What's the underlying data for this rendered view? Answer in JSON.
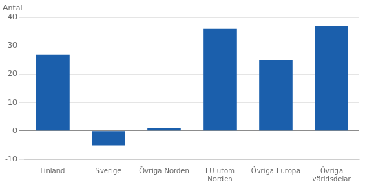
{
  "chart_data": {
    "type": "bar",
    "ylabel": "Antal",
    "categories": [
      "Finland",
      "Sverige",
      "Övriga Norden",
      "EU utom\nNorden",
      "Övriga Europa",
      "Övriga\nvärldsdelar"
    ],
    "values": [
      27,
      -5,
      1,
      36,
      25,
      37
    ],
    "color": "#1b5fac",
    "ylim": [
      -10,
      40
    ],
    "yticks": [
      -10,
      0,
      10,
      20,
      30,
      40
    ],
    "grid": true
  }
}
